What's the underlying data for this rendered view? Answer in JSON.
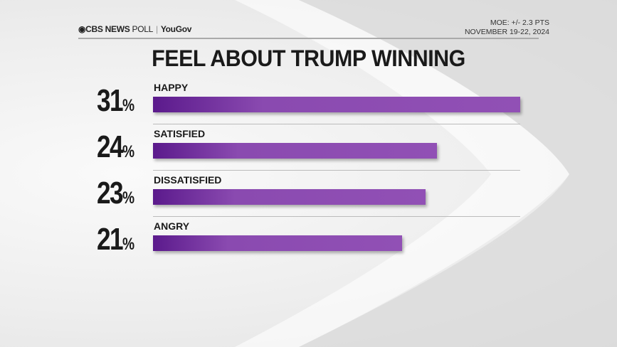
{
  "header": {
    "brand": "CBS NEWS",
    "poll": "POLL",
    "partner": "YouGov",
    "moe": "MOE: +/- 2.3 PTS",
    "dates": "NOVEMBER 19-22, 2024"
  },
  "chart_data": {
    "type": "bar",
    "title": "FEEL ABOUT TRUMP WINNING",
    "categories": [
      "HAPPY",
      "SATISFIED",
      "DISSATISFIED",
      "ANGRY"
    ],
    "values": [
      31,
      24,
      23,
      21
    ],
    "value_labels": [
      "31",
      "24",
      "23",
      "21"
    ],
    "unit": "%",
    "xlim": [
      0,
      31
    ],
    "color": "#8a4ab0"
  }
}
